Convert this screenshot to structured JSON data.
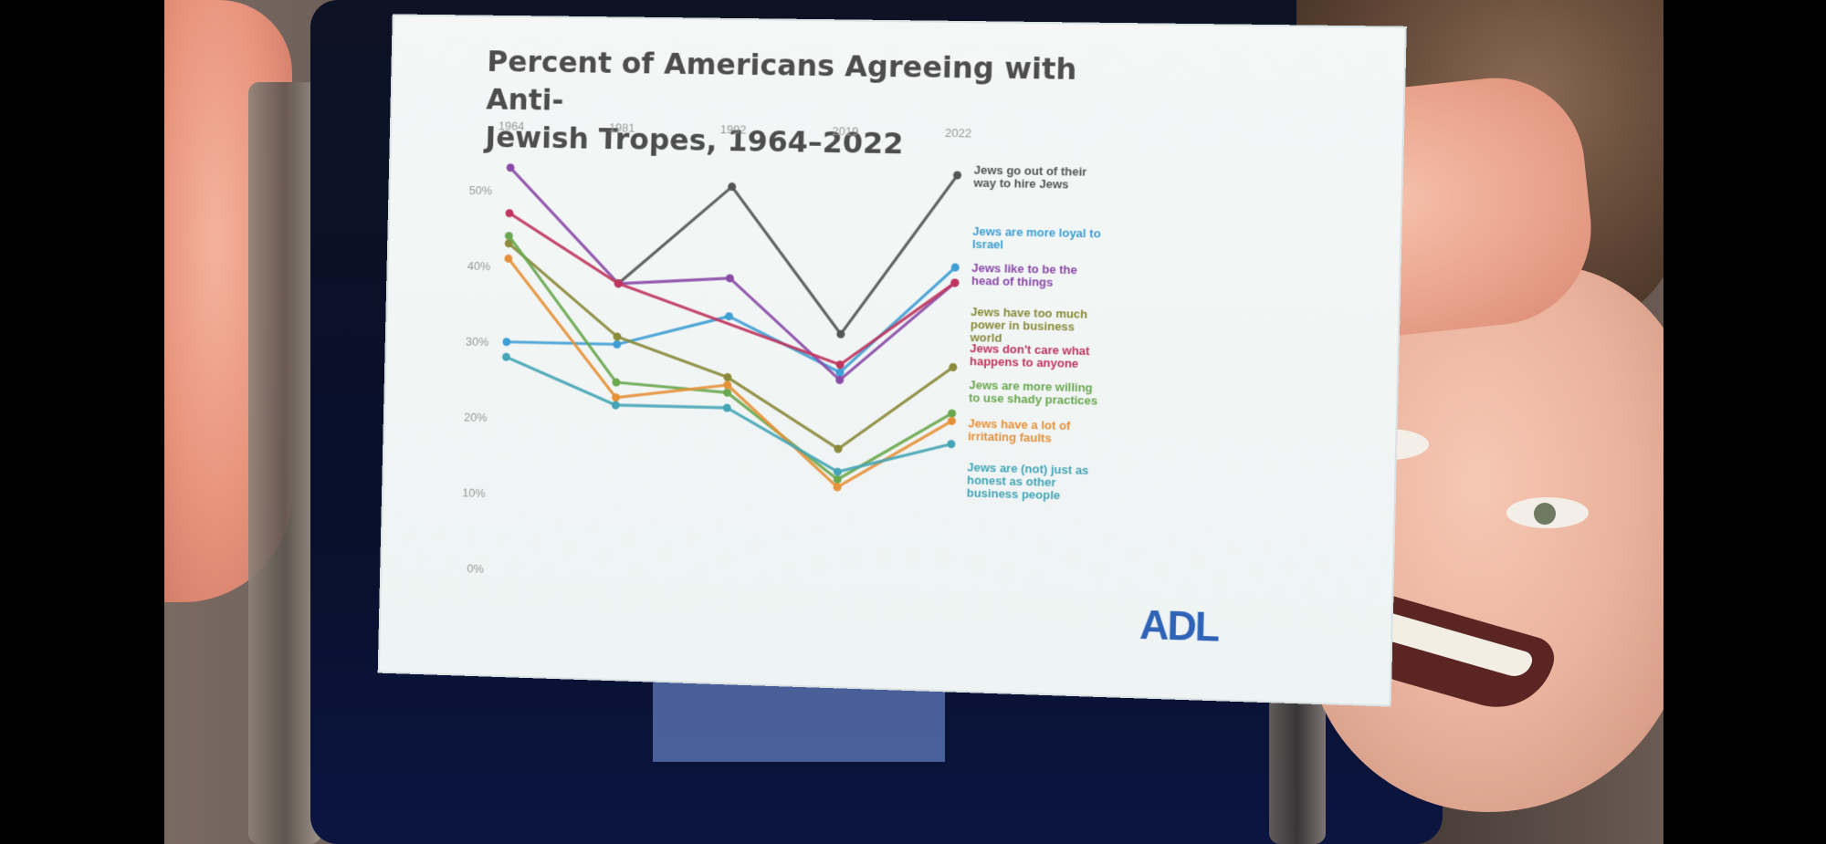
{
  "slide": {
    "title_line1": "Percent of Americans Agreeing with Anti-",
    "title_line2": "Jewish Tropes, 1964–2022",
    "logo_text": "ADL"
  },
  "chart_data": {
    "type": "line",
    "title": "Percent of Americans Agreeing with Anti-Jewish Tropes, 1964–2022",
    "x": [
      "1964",
      "1981",
      "1992",
      "2019",
      "2022"
    ],
    "y_ticks": [
      "0%",
      "10%",
      "20%",
      "30%",
      "40%",
      "50%"
    ],
    "ylim": [
      0,
      55
    ],
    "grid": false,
    "legend_position": "right, inline labels",
    "series": [
      {
        "name": "Jews go out of their way to hire Jews",
        "color": "#555555",
        "values": [
          null,
          38,
          51,
          32,
          53
        ]
      },
      {
        "name": "Jews are more loyal to Israel",
        "color": "#3f9fd4",
        "values": [
          30,
          30,
          34,
          27,
          41
        ]
      },
      {
        "name": "Jews like to be the head of things",
        "color": "#8a4aa7",
        "values": [
          53,
          38,
          39,
          26,
          39
        ]
      },
      {
        "name": "Jews have too much power in business world",
        "color": "#8a8a3a",
        "values": [
          43,
          31,
          26,
          17,
          28
        ]
      },
      {
        "name": "Jews don't care what happens to anyone",
        "color": "#c0355e",
        "values": [
          47,
          38,
          null,
          28,
          39
        ]
      },
      {
        "name": "Jews are more willing to use shady practices",
        "color": "#6aa84f",
        "values": [
          44,
          25,
          24,
          13,
          22
        ]
      },
      {
        "name": "Jews have a lot of irritating faults",
        "color": "#e69138",
        "values": [
          41,
          23,
          25,
          12,
          21
        ]
      },
      {
        "name": "Jews are (not) just as honest as other business people",
        "color": "#45a5b5",
        "values": [
          28,
          22,
          22,
          14,
          18
        ]
      }
    ]
  },
  "colors": {
    "slide_bg": "#f1f5f5",
    "title": "#4d4d4d",
    "axis_text": "#9a9a9a",
    "logo": "#2e63b8"
  }
}
